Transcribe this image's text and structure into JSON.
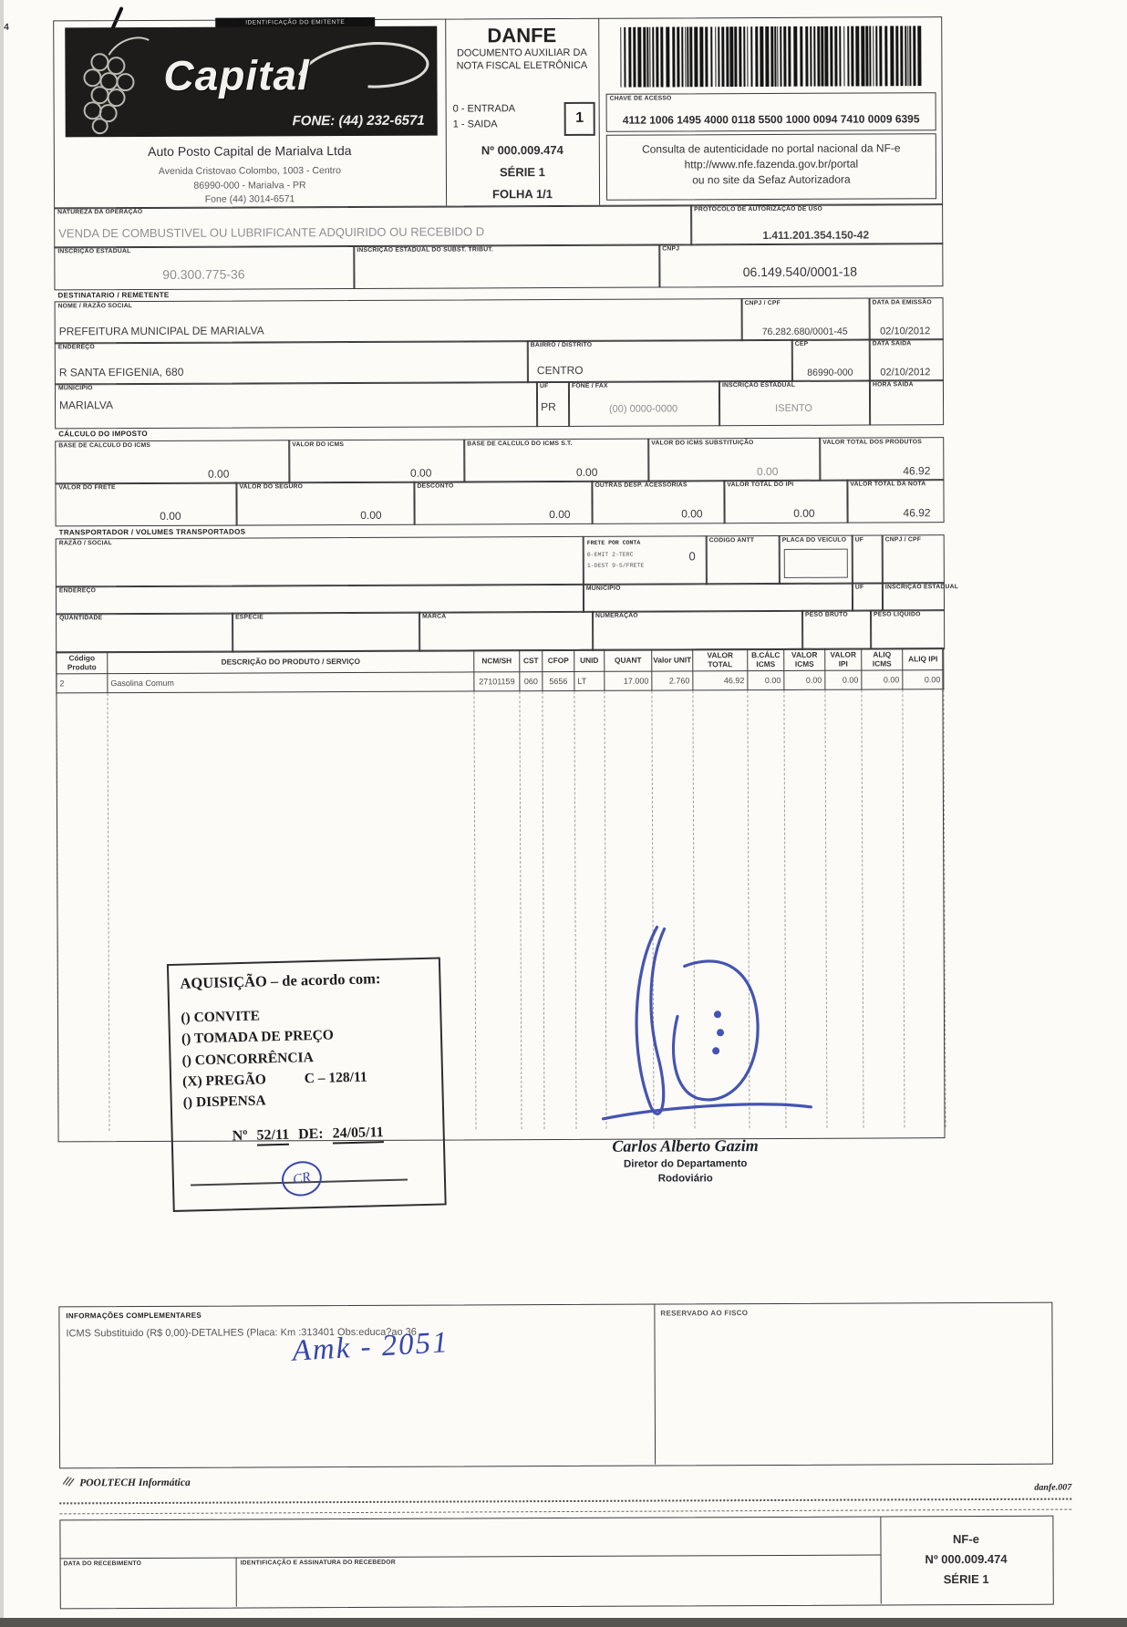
{
  "emitter": {
    "id_label": "IDENTIFICAÇÃO DO EMITENTE",
    "logo_text": "Capital",
    "logo_phone": "FONE: (44) 232-6571",
    "name": "Auto Posto Capital de Marialva Ltda",
    "address_line1": "Avenida Cristovao Colombo, 1003 - Centro",
    "address_line2": "86990-000 - Marialva - PR",
    "address_line3": "Fone (44) 3014-6571"
  },
  "danfe": {
    "title": "DANFE",
    "subtitle": "DOCUMENTO AUXILIAR DA NOTA FISCAL ELETRÔNICA",
    "entrada_label": "0 - ENTRADA",
    "saida_label": "1 - SAIDA",
    "tipo_value": "1",
    "numero": "Nº 000.009.474",
    "serie": "SÉRIE 1",
    "folha": "FOLHA 1/1"
  },
  "access_key": {
    "label": "CHAVE DE ACESSO",
    "value": "4112 1006 1495 4000 0118 5500 1000 0094 7410 0009 6395",
    "consulta_line1": "Consulta de autenticidade no portal nacional da NF-e",
    "consulta_line2": "http://www.nfe.fazenda.gov.br/portal",
    "consulta_line3": "ou no site da Sefaz Autorizadora"
  },
  "operacao": {
    "natureza_label": "NATUREZA DA OPERAÇÃO",
    "natureza": "VENDA DE COMBUSTIVEL OU LUBRIFICANTE ADQUIRIDO OU RECEBIDO D",
    "protocolo_label": "PROTOCOLO DE AUTORIZAÇÃO DE USO",
    "protocolo": "1.411.201.354.150-42",
    "ie_label": "INSCRIÇÃO ESTADUAL",
    "ie": "90.300.775-36",
    "ie_subst_label": "INSCRIÇÃO ESTADUAL DO SUBST. TRIBUT.",
    "cnpj_label": "CNPJ",
    "cnpj": "06.149.540/0001-18"
  },
  "destinatario": {
    "section_label": "DESTINATARIO / REMETENTE",
    "nome_label": "NOME / RAZÃO SOCIAL",
    "nome": "PREFEITURA MUNICIPAL DE MARIALVA",
    "cnpj_label": "CNPJ / CPF",
    "cnpj": "76.282.680/0001-45",
    "emissao_label": "DATA DA EMISSÃO",
    "emissao": "02/10/2012",
    "endereco_label": "ENDEREÇO",
    "endereco": "R SANTA EFIGENIA, 680",
    "bairro_label": "BAIRRO / DISTRITO",
    "bairro": "CENTRO",
    "cep_label": "CEP",
    "cep": "86990-000",
    "saida_label": "DATA SAIDA",
    "saida": "02/10/2012",
    "municipio_label": "MUNICIPIO",
    "municipio": "MARIALVA",
    "uf_label": "UF",
    "uf": "PR",
    "fone_label": "FONE / FAX",
    "fone": "(00) 0000-0000",
    "ie_label": "INSCRIÇÃO ESTADUAL",
    "ie": "ISENTO",
    "hora_label": "HORA SAIDA"
  },
  "imposto": {
    "section_label": "CÁLCULO DO IMPOSTO",
    "base_icms_label": "BASE DE CALCULO DO ICMS",
    "base_icms": "0.00",
    "valor_icms_label": "VALOR DO ICMS",
    "valor_icms": "0.00",
    "base_icms_st_label": "BASE DE CALCULO DO ICMS S.T.",
    "base_icms_st": "0.00",
    "valor_icms_subst_label": "VALOR DO ICMS SUBSTITUIÇÃO",
    "valor_icms_subst": "0.00",
    "total_produtos_label": "VALOR TOTAL DOS PRODUTOS",
    "total_produtos": "46.92",
    "frete_label": "VALOR DO FRETE",
    "frete": "0.00",
    "seguro_label": "VALOR DO SEGURO",
    "seguro": "0.00",
    "desconto_label": "DESCONTO",
    "desconto": "0.00",
    "outras_label": "OUTRAS DESP. ACESSORIAS",
    "outras": "0.00",
    "total_ipi_label": "VALOR TOTAL DO IPI",
    "total_ipi": "0.00",
    "total_nota_label": "VALOR TOTAL DA NOTA",
    "total_nota": "46.92"
  },
  "transporte": {
    "section_label": "TRANSPORTADOR / VOLUMES TRANSPORTADOS",
    "razao_label": "RAZÃO / SOCIAL",
    "frete_conta_label": "FRETE POR CONTA",
    "frete_conta_legend1": "0-EMIT 2-TERC",
    "frete_conta_legend2": "1-DEST 9-S/FRETE",
    "frete_conta_value": "0",
    "codigo_antt_label": "CODIGO ANTT",
    "placa_label": "PLACA DO VEICULO",
    "uf_label": "UF",
    "cnpj_label": "CNPJ / CPF",
    "endereco_label": "ENDEREÇO",
    "municipio_label": "MUNICIPIO",
    "ie_label": "INSCRIÇÃO ESTADUAL",
    "quantidade_label": "QUANTIDADE",
    "especie_label": "ESPÉCIE",
    "marca_label": "MARCA",
    "numeracao_label": "NUMERAÇÃO",
    "peso_bruto_label": "PESO BRUTO",
    "peso_liquido_label": "PESO LIQUIDO"
  },
  "produtos": {
    "headers": [
      "Código Produto",
      "DESCRIÇÃO DO PRODUTO / SERVIÇO",
      "NCM/SH",
      "CST",
      "CFOP",
      "UNID",
      "QUANT",
      "Valor UNIT",
      "VALOR TOTAL",
      "B.CÁLC ICMS",
      "VALOR ICMS",
      "VALOR IPI",
      "ALIQ ICMS",
      "ALIQ IPI"
    ],
    "row": [
      "2",
      "Gasolina Comum",
      "27101159",
      "060",
      "5656",
      "LT",
      "17.000",
      "2.760",
      "46.92",
      "0.00",
      "0.00",
      "0.00",
      "0.00",
      "0.00"
    ]
  },
  "stamp": {
    "title": "AQUISIÇÃO – de acordo com:",
    "options": [
      "() CONVITE",
      "() TOMADA DE PREÇO",
      "() CONCORRÊNCIA",
      "(X) PREGÃO",
      "() DISPENSA"
    ],
    "pregao_ref": "C – 128/11",
    "numero_prefix": "Nº",
    "numero": "52/11",
    "de_prefix": "DE:",
    "data": "24/05/11",
    "initials": "CR"
  },
  "assinatura": {
    "name": "Carlos Alberto Gazim",
    "role_line1": "Diretor do Departamento",
    "role_line2": "Rodoviário"
  },
  "info": {
    "section_label": "INFORMAÇÕES COMPLEMENTARES",
    "text": "ICMS Substituido (R$ 0,00)-DETALHES (Placa: Km :313401 Obs:educa?ao 36",
    "handwriting": "Amk - 2051",
    "fisco_label": "RESERVADO AO FISCO"
  },
  "footer": {
    "software": "POOLTECH Informática",
    "ref": "danfe.007"
  },
  "stub": {
    "data_label": "DATA DO RECEBIMENTO",
    "assinatura_label": "IDENTIFICAÇÃO E ASSINATURA DO RECEBEDOR",
    "nfe_line1": "NF-e",
    "nfe_line2": "Nº 000.009.474",
    "nfe_line3": "SÉRIE 1"
  },
  "colors": {
    "ink": "#3a3a3a",
    "pen_blue": "#3646ad",
    "paper": "#fcfbf8"
  }
}
